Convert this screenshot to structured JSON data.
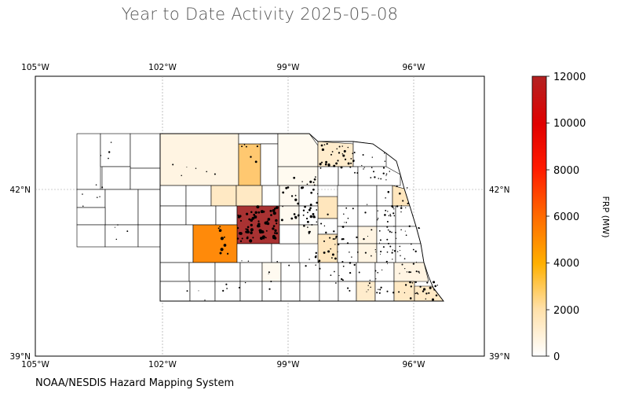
{
  "title": "Year to Date Activity 2025-05-08",
  "credit": "NOAA/NESDIS Hazard Mapping System",
  "map": {
    "lon_ticks": [
      "105°W",
      "102°W",
      "99°W",
      "96°W"
    ],
    "lat_ticks": [
      "42°N",
      "39°N"
    ],
    "lon_range": [
      -105,
      -94.25
    ],
    "lat_range": [
      39,
      44.6
    ],
    "gridlines": true
  },
  "colorbar": {
    "label": "FRP (MW)",
    "min": 0,
    "max": 12000,
    "ticks": [
      "0",
      "2000",
      "4000",
      "6000",
      "8000",
      "10000",
      "12000"
    ],
    "colors": [
      "#ffffff",
      "#ffe4b0",
      "#ffb000",
      "#ff6a00",
      "#ff0000",
      "#b22222"
    ]
  },
  "chart_data": {
    "type": "choropleth",
    "title": "Year to Date Activity 2025-05-08",
    "region": "Nebraska counties",
    "highlighted_counties": [
      {
        "lon": -99.3,
        "lat": 41.55,
        "frp": 12000,
        "color": "#a93232"
      },
      {
        "lon": -100.6,
        "lat": 41.05,
        "frp": 5000,
        "color": "#ff8a0a"
      },
      {
        "lon": -100.2,
        "lat": 42.55,
        "frp": 1600,
        "color": "#ffc870"
      },
      {
        "lon": -101.5,
        "lat": 42.65,
        "frp": 300,
        "color": "#fff4e2"
      },
      {
        "lon": -100.2,
        "lat": 41.95,
        "frp": 700,
        "color": "#ffe9c4"
      },
      {
        "lon": -98.9,
        "lat": 42.6,
        "frp": 200,
        "color": "#fffaf0"
      },
      {
        "lon": -97.8,
        "lat": 42.75,
        "frp": 600,
        "color": "#ffeccc"
      },
      {
        "lon": -98.4,
        "lat": 41.6,
        "frp": 900,
        "color": "#ffe6bd"
      },
      {
        "lon": -97.8,
        "lat": 40.95,
        "frp": 900,
        "color": "#ffe6bd"
      },
      {
        "lon": -97.4,
        "lat": 40.25,
        "frp": 600,
        "color": "#ffeccc"
      },
      {
        "lon": -95.7,
        "lat": 41.85,
        "frp": 800,
        "color": "#ffe6bd"
      },
      {
        "lon": -95.6,
        "lat": 40.15,
        "frp": 700,
        "color": "#ffe9c4"
      }
    ],
    "colorbar": {
      "label": "FRP (MW)",
      "min": 0,
      "max": 12000
    }
  }
}
